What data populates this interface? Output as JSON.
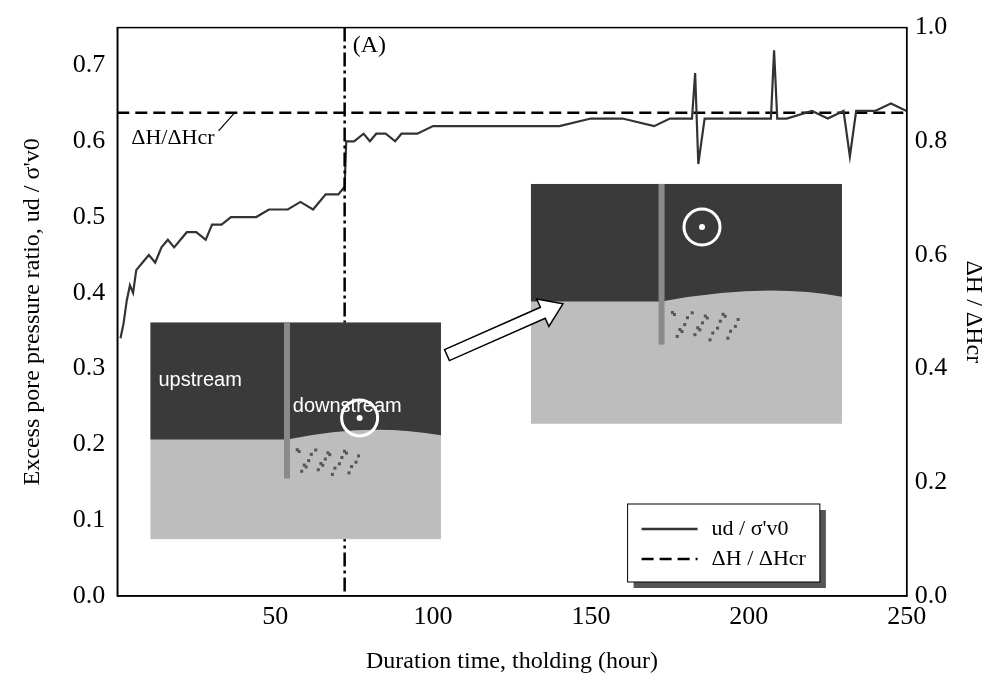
{
  "chart_data": {
    "type": "line",
    "x_label": "Duration time, tholding (hour)",
    "y_label": "Excess pore pressure ratio, ud / σ'v0",
    "y2_label": "ΔH / ΔHcr",
    "xlim": [
      0,
      250
    ],
    "xticks": [
      50,
      100,
      150,
      200,
      250
    ],
    "ylim": [
      0,
      0.75
    ],
    "yticks": [
      {
        "value": 0,
        "label": "0.0"
      },
      {
        "value": 0.1,
        "label": "0.1"
      },
      {
        "value": 0.2,
        "label": "0.2"
      },
      {
        "value": 0.3,
        "label": "0.3"
      },
      {
        "value": 0.4,
        "label": "0.4"
      },
      {
        "value": 0.5,
        "label": "0.5"
      },
      {
        "value": 0.6,
        "label": "0.6"
      },
      {
        "value": 0.7,
        "label": "0.7"
      }
    ],
    "y2lim": [
      0,
      1.0
    ],
    "y2ticks": [
      {
        "value": 0,
        "label": "0.0"
      },
      {
        "value": 0.2,
        "label": "0.2"
      },
      {
        "value": 0.4,
        "label": "0.4"
      },
      {
        "value": 0.6,
        "label": "0.6"
      },
      {
        "value": 0.8,
        "label": "0.8"
      },
      {
        "value": 1.0,
        "label": "1.0"
      }
    ],
    "grid": false,
    "legend": "lower right",
    "series": [
      {
        "name": "ud / σ'v0",
        "color": "#333333",
        "line_style": "solid",
        "marker": "none",
        "x": [
          1,
          2,
          3,
          4,
          5,
          6,
          8,
          10,
          12,
          14,
          16,
          18,
          20,
          22,
          25,
          28,
          30,
          33,
          36,
          40,
          44,
          48,
          50,
          54,
          58,
          62,
          66,
          70,
          72,
          72.5,
          75,
          78,
          80,
          82,
          85,
          88,
          90,
          95,
          100,
          110,
          120,
          130,
          140,
          150,
          160,
          170,
          175,
          180,
          182,
          183,
          184,
          186,
          190,
          195,
          200,
          205,
          207,
          208,
          209,
          212,
          220,
          225,
          230,
          232,
          234,
          240,
          245,
          250
        ],
        "values": [
          0.34,
          0.36,
          0.39,
          0.41,
          0.4,
          0.43,
          0.44,
          0.45,
          0.44,
          0.46,
          0.47,
          0.46,
          0.47,
          0.48,
          0.48,
          0.47,
          0.49,
          0.49,
          0.5,
          0.5,
          0.5,
          0.51,
          0.51,
          0.51,
          0.52,
          0.51,
          0.53,
          0.53,
          0.54,
          0.6,
          0.6,
          0.61,
          0.6,
          0.61,
          0.61,
          0.6,
          0.61,
          0.61,
          0.62,
          0.62,
          0.62,
          0.62,
          0.62,
          0.63,
          0.63,
          0.62,
          0.63,
          0.63,
          0.63,
          0.69,
          0.57,
          0.63,
          0.63,
          0.63,
          0.63,
          0.63,
          0.63,
          0.72,
          0.63,
          0.63,
          0.64,
          0.63,
          0.64,
          0.58,
          0.64,
          0.64,
          0.65,
          0.64
        ]
      },
      {
        "name": "ΔH / ΔHcr",
        "color": "#000000",
        "line_style": "dashed",
        "marker": "none",
        "axis": "y2",
        "x": [
          0,
          250
        ],
        "values": [
          0.85,
          0.85
        ]
      }
    ],
    "annotations": [
      {
        "text": "(A)",
        "x": 72
      },
      {
        "text": "ΔH/ΔHcr"
      },
      {
        "text": "upstream"
      },
      {
        "text": "downstream"
      }
    ]
  }
}
